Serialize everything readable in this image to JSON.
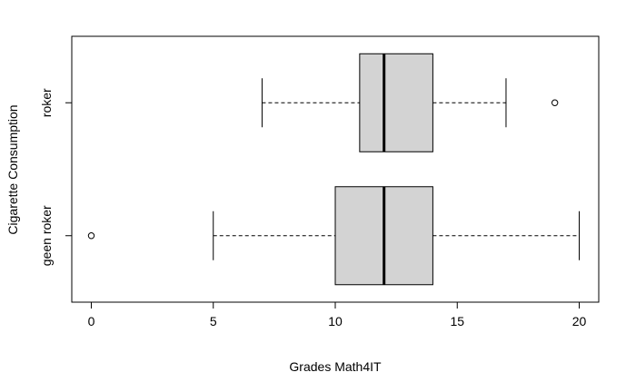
{
  "chart_data": {
    "type": "boxplot",
    "orientation": "horizontal",
    "title": "",
    "xlabel": "Grades Math4IT",
    "ylabel": "Cigarette Consumption",
    "xlim": [
      -0.8,
      20.8
    ],
    "xticks": [
      0,
      5,
      10,
      15,
      20
    ],
    "box_fill": "#d3d3d3",
    "line_color": "#000000",
    "groups": [
      {
        "name": "geen roker",
        "whisker_low": 5,
        "q1": 10,
        "median": 12,
        "q3": 14,
        "whisker_high": 20,
        "outliers": [
          0
        ]
      },
      {
        "name": "roker",
        "whisker_low": 7,
        "q1": 11,
        "median": 12,
        "q3": 14,
        "whisker_high": 17,
        "outliers": [
          19
        ]
      }
    ]
  }
}
